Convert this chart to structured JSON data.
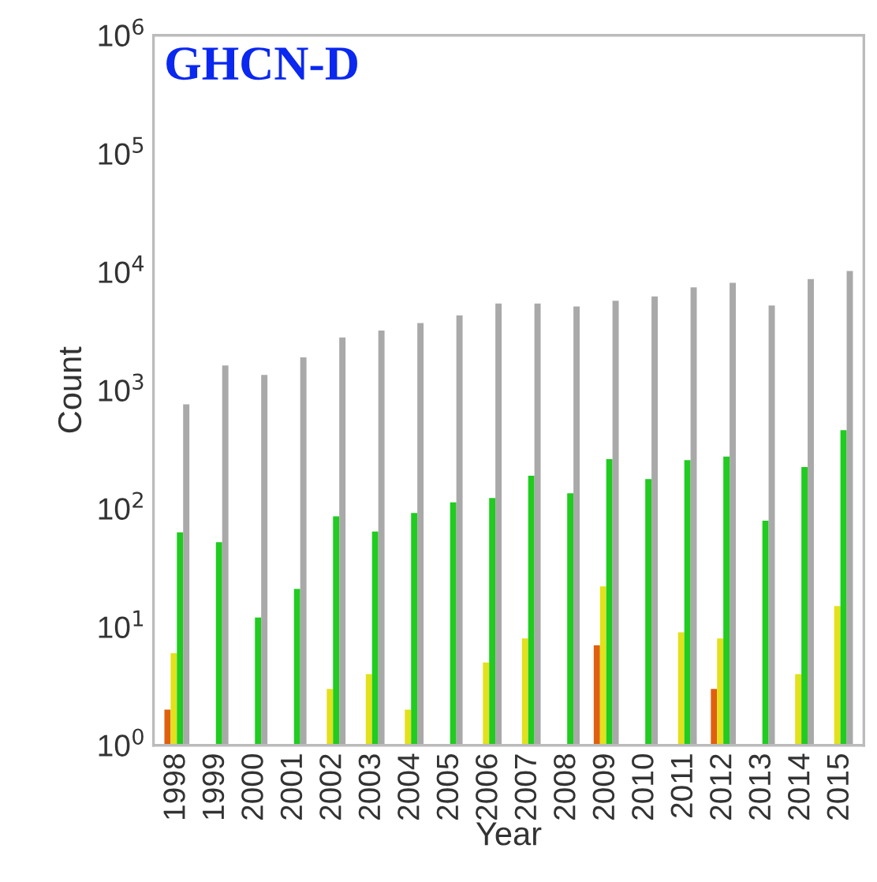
{
  "chart_data": {
    "type": "bar",
    "xlabel": "Year",
    "ylabel": "Count",
    "annotations": [
      "GHCN-D"
    ],
    "categories": [
      "1998",
      "1999",
      "2000",
      "2001",
      "2002",
      "2003",
      "2004",
      "2005",
      "2006",
      "2007",
      "2008",
      "2009",
      "2010",
      "2011",
      "2012",
      "2013",
      "2014",
      "2015"
    ],
    "series": [
      {
        "color": "#e0600f",
        "values": [
          2,
          null,
          null,
          null,
          null,
          null,
          null,
          null,
          null,
          null,
          null,
          7,
          null,
          null,
          3,
          null,
          null,
          null
        ]
      },
      {
        "color": "#e3e01c",
        "values": [
          6,
          null,
          null,
          null,
          3,
          4,
          2,
          null,
          5,
          8,
          null,
          22,
          null,
          9,
          8,
          null,
          4,
          15
        ]
      },
      {
        "color": "#1fcc1f",
        "values": [
          63,
          52,
          12,
          21,
          86,
          64,
          92,
          113,
          123,
          190,
          135,
          262,
          178,
          257,
          275,
          79,
          225,
          460
        ]
      },
      {
        "color": "#a9a9a9",
        "values": [
          760,
          1620,
          1350,
          1900,
          2800,
          3200,
          3700,
          4300,
          5400,
          5400,
          5100,
          5700,
          6200,
          7400,
          8100,
          5200,
          8700,
          10200
        ]
      }
    ],
    "log": true,
    "ylim": [
      1,
      1000000
    ],
    "yticks": [
      {
        "value": 1,
        "label": "10$^{0}$"
      },
      {
        "value": 10,
        "label": "10$^{1}$"
      },
      {
        "value": 100,
        "label": "10$^{2}$"
      },
      {
        "value": 1000,
        "label": "10$^{3}$"
      },
      {
        "value": 10000,
        "label": "10$^{4}$"
      },
      {
        "value": 100000,
        "label": "10$^{5}$"
      },
      {
        "value": 1000000,
        "label": "10$^{6}$"
      }
    ],
    "grid": false,
    "legend": false
  }
}
